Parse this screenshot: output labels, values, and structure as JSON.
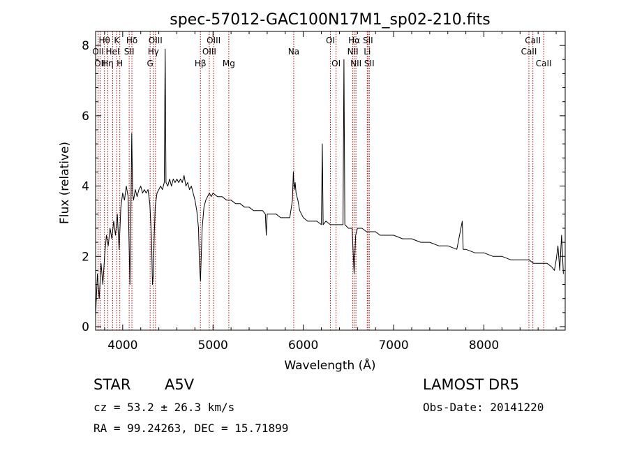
{
  "chart_data": {
    "type": "line",
    "title": "spec-57012-GAC100N17M1_sp02-210.fits",
    "xlabel": "Wavelength (Å)",
    "ylabel": "Flux (relative)",
    "xlim": [
      3700,
      8900
    ],
    "ylim": [
      -0.1,
      8.4
    ],
    "xticks": [
      4000,
      5000,
      6000,
      7000,
      8000
    ],
    "yticks": [
      0,
      2,
      4,
      6,
      8
    ],
    "xtick_labels": [
      "4000",
      "5000",
      "6000",
      "7000",
      "8000"
    ],
    "ytick_labels": [
      "0",
      "2",
      "4",
      "6",
      "8"
    ],
    "grid": false,
    "series": [
      {
        "x": [
          3700,
          3720,
          3740,
          3760,
          3780,
          3800,
          3820,
          3840,
          3860,
          3880,
          3900,
          3920,
          3940,
          3960,
          3980,
          4000,
          4020,
          4040,
          4060,
          4080,
          4090,
          4100,
          4110,
          4120,
          4140,
          4160,
          4180,
          4200,
          4220,
          4240,
          4260,
          4280,
          4300,
          4320,
          4330,
          4340,
          4350,
          4360,
          4380,
          4400,
          4420,
          4440,
          4460,
          4470,
          4480,
          4500,
          4520,
          4540,
          4560,
          4580,
          4600,
          4620,
          4640,
          4660,
          4680,
          4700,
          4720,
          4740,
          4760,
          4780,
          4800,
          4820,
          4840,
          4850,
          4861,
          4870,
          4880,
          4900,
          4920,
          4940,
          4960,
          4980,
          5000,
          5050,
          5100,
          5150,
          5200,
          5250,
          5300,
          5350,
          5400,
          5450,
          5500,
          5550,
          5580,
          5590,
          5600,
          5650,
          5700,
          5750,
          5800,
          5850,
          5880,
          5890,
          5900,
          5910,
          5920,
          5940,
          5960,
          5980,
          6000,
          6050,
          6100,
          6150,
          6200,
          6210,
          6220,
          6250,
          6300,
          6350,
          6400,
          6440,
          6450,
          6460,
          6500,
          6540,
          6563,
          6580,
          6600,
          6650,
          6700,
          6750,
          6800,
          6850,
          6900,
          6950,
          7000,
          7100,
          7200,
          7300,
          7400,
          7500,
          7600,
          7700,
          7760,
          7770,
          7780,
          7800,
          7900,
          8000,
          8100,
          8200,
          8300,
          8400,
          8500,
          8550,
          8600,
          8650,
          8700,
          8750,
          8780,
          8800,
          8820,
          8840,
          8860,
          8880
        ],
        "y": [
          0.3,
          1.5,
          0.8,
          1.8,
          1.2,
          2.0,
          2.6,
          2.3,
          2.8,
          2.5,
          3.0,
          2.6,
          3.2,
          2.2,
          3.4,
          3.8,
          3.6,
          4.0,
          3.7,
          1.2,
          3.2,
          5.5,
          3.8,
          3.6,
          3.9,
          3.7,
          3.9,
          4.0,
          3.8,
          3.9,
          3.8,
          3.9,
          3.5,
          2.5,
          1.2,
          1.5,
          2.6,
          3.4,
          3.8,
          3.9,
          4.0,
          3.9,
          4.1,
          7.9,
          4.1,
          4.0,
          4.2,
          4.0,
          4.2,
          4.1,
          4.2,
          4.1,
          4.2,
          4.1,
          4.3,
          4.0,
          4.1,
          3.9,
          4.0,
          3.8,
          3.6,
          3.3,
          2.8,
          1.8,
          1.3,
          2.0,
          2.8,
          3.4,
          3.6,
          3.7,
          3.8,
          3.7,
          3.8,
          3.7,
          3.7,
          3.6,
          3.6,
          3.5,
          3.5,
          3.4,
          3.4,
          3.3,
          3.3,
          3.3,
          3.2,
          2.6,
          3.2,
          3.2,
          3.2,
          3.1,
          3.1,
          3.1,
          3.6,
          4.4,
          3.9,
          4.1,
          3.8,
          3.6,
          3.3,
          3.2,
          3.1,
          3.0,
          3.0,
          3.0,
          2.9,
          5.2,
          2.9,
          3.0,
          2.9,
          2.9,
          2.9,
          2.9,
          7.6,
          2.9,
          2.8,
          2.8,
          1.5,
          2.6,
          2.8,
          2.8,
          2.7,
          2.7,
          2.7,
          2.6,
          2.6,
          2.6,
          2.6,
          2.5,
          2.5,
          2.4,
          2.4,
          2.3,
          2.3,
          2.2,
          3.0,
          2.2,
          2.2,
          2.2,
          2.1,
          2.1,
          2.0,
          2.0,
          1.9,
          1.9,
          1.9,
          1.8,
          1.8,
          1.8,
          1.8,
          1.7,
          1.6,
          1.9,
          2.3,
          1.6,
          2.6,
          1.5
        ]
      }
    ],
    "lines": [
      {
        "x": 3727,
        "label": "OII",
        "row": 2
      },
      {
        "x": 3750,
        "label": "OII",
        "row": 3
      },
      {
        "x": 3798,
        "label": "Hθ",
        "row": 1
      },
      {
        "x": 3835,
        "label": "Hη",
        "row": 3
      },
      {
        "x": 3889,
        "label": "HeI",
        "row": 2
      },
      {
        "x": 3934,
        "label": "K",
        "row": 1
      },
      {
        "x": 3968,
        "label": "H",
        "row": 3
      },
      {
        "x": 4072,
        "label": "SII",
        "row": 2
      },
      {
        "x": 4102,
        "label": "Hδ",
        "row": 1
      },
      {
        "x": 4304,
        "label": "G",
        "row": 3
      },
      {
        "x": 4340,
        "label": "Hγ",
        "row": 2
      },
      {
        "x": 4363,
        "label": "OIII",
        "row": 1
      },
      {
        "x": 4861,
        "label": "Hβ",
        "row": 3
      },
      {
        "x": 4959,
        "label": "OIII",
        "row": 2
      },
      {
        "x": 5007,
        "label": "OIII",
        "row": 1
      },
      {
        "x": 5175,
        "label": "Mg",
        "row": 3
      },
      {
        "x": 5894,
        "label": "Na",
        "row": 2
      },
      {
        "x": 6300,
        "label": "OI",
        "row": 1
      },
      {
        "x": 6363,
        "label": "OI",
        "row": 3
      },
      {
        "x": 6548,
        "label": "NII",
        "row": 2
      },
      {
        "x": 6563,
        "label": "Hα",
        "row": 1
      },
      {
        "x": 6583,
        "label": "NII",
        "row": 3
      },
      {
        "x": 6708,
        "label": "Li",
        "row": 2
      },
      {
        "x": 6716,
        "label": "SII",
        "row": 1
      },
      {
        "x": 6731,
        "label": "SII",
        "row": 3
      },
      {
        "x": 8498,
        "label": "CaII",
        "row": 2
      },
      {
        "x": 8542,
        "label": "CaII",
        "row": 1
      },
      {
        "x": 8662,
        "label": "CaII",
        "row": 3
      }
    ],
    "line_color": "#c00000"
  },
  "footer": {
    "object_type": "STAR",
    "subclass": "A5V",
    "survey": "LAMOST DR5",
    "redshift": "cz = 53.2 ± 26.3 km/s",
    "obs_date": "Obs-Date: 20141220",
    "coords": "RA =  99.24263, DEC =  15.71899"
  }
}
